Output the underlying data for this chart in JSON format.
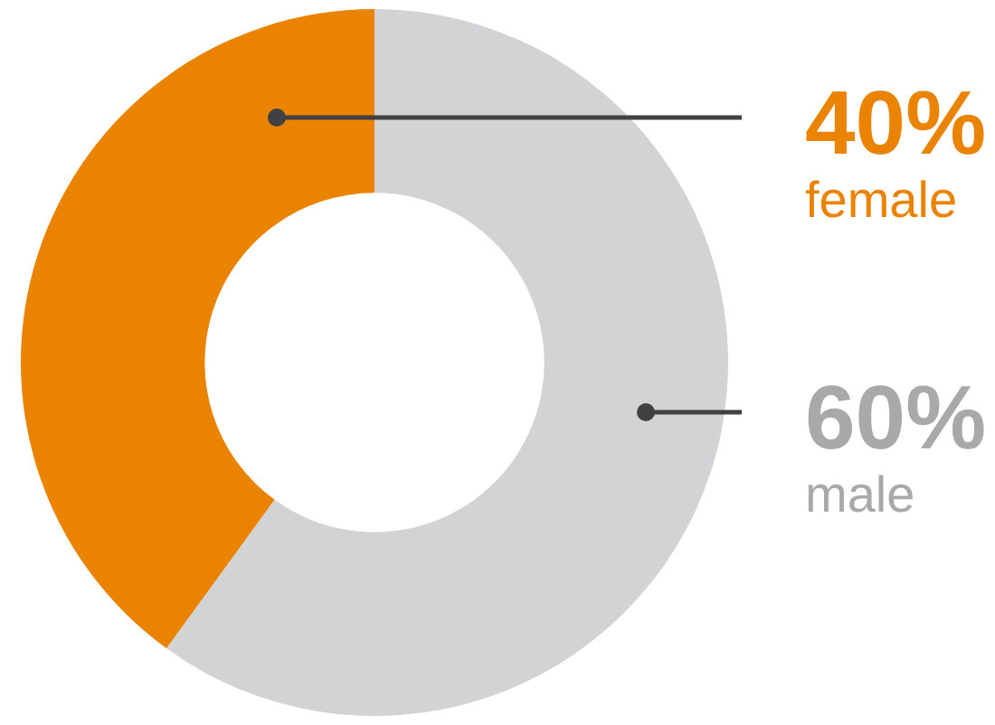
{
  "chart_data": {
    "type": "donut",
    "categories": [
      "female",
      "male"
    ],
    "values": [
      40,
      60
    ],
    "colors": [
      "#e98300",
      "#d1d3d4"
    ],
    "value_labels": [
      "40%",
      "60%"
    ],
    "legend": false
  }
}
